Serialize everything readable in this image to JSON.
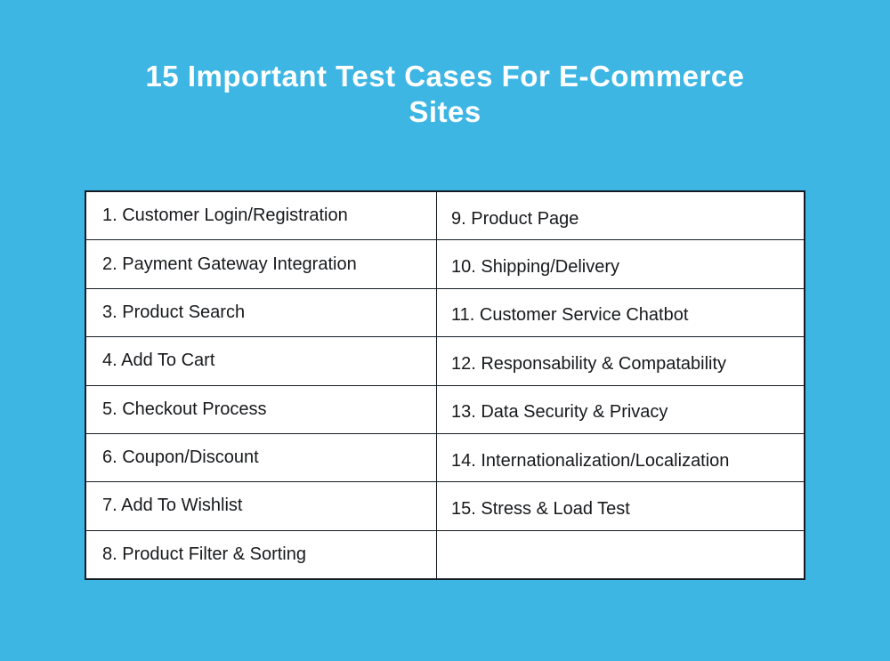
{
  "page": {
    "title": "15 Important Test Cases For E-Commerce Sites",
    "background_color": "#3db6e4",
    "title_color": "#ffffff"
  },
  "table": {
    "background_color": "#ffffff",
    "border_color": "#131c24",
    "text_color": "#17191c",
    "columns": [
      {
        "name": "left",
        "cells": [
          "1. Customer Login/Registration",
          "2. Payment Gateway Integration",
          "3. Product Search",
          "4. Add To Cart",
          "5. Checkout Process",
          "6. Coupon/Discount",
          "7. Add To Wishlist",
          "8. Product Filter & Sorting"
        ]
      },
      {
        "name": "right",
        "cells": [
          "9. Product Page",
          "10. Shipping/Delivery",
          "11. Customer Service Chatbot",
          "12. Responsability & Compatability",
          "13. Data Security & Privacy",
          "14. Internationalization/Localization",
          "15. Stress & Load Test",
          ""
        ]
      }
    ]
  }
}
